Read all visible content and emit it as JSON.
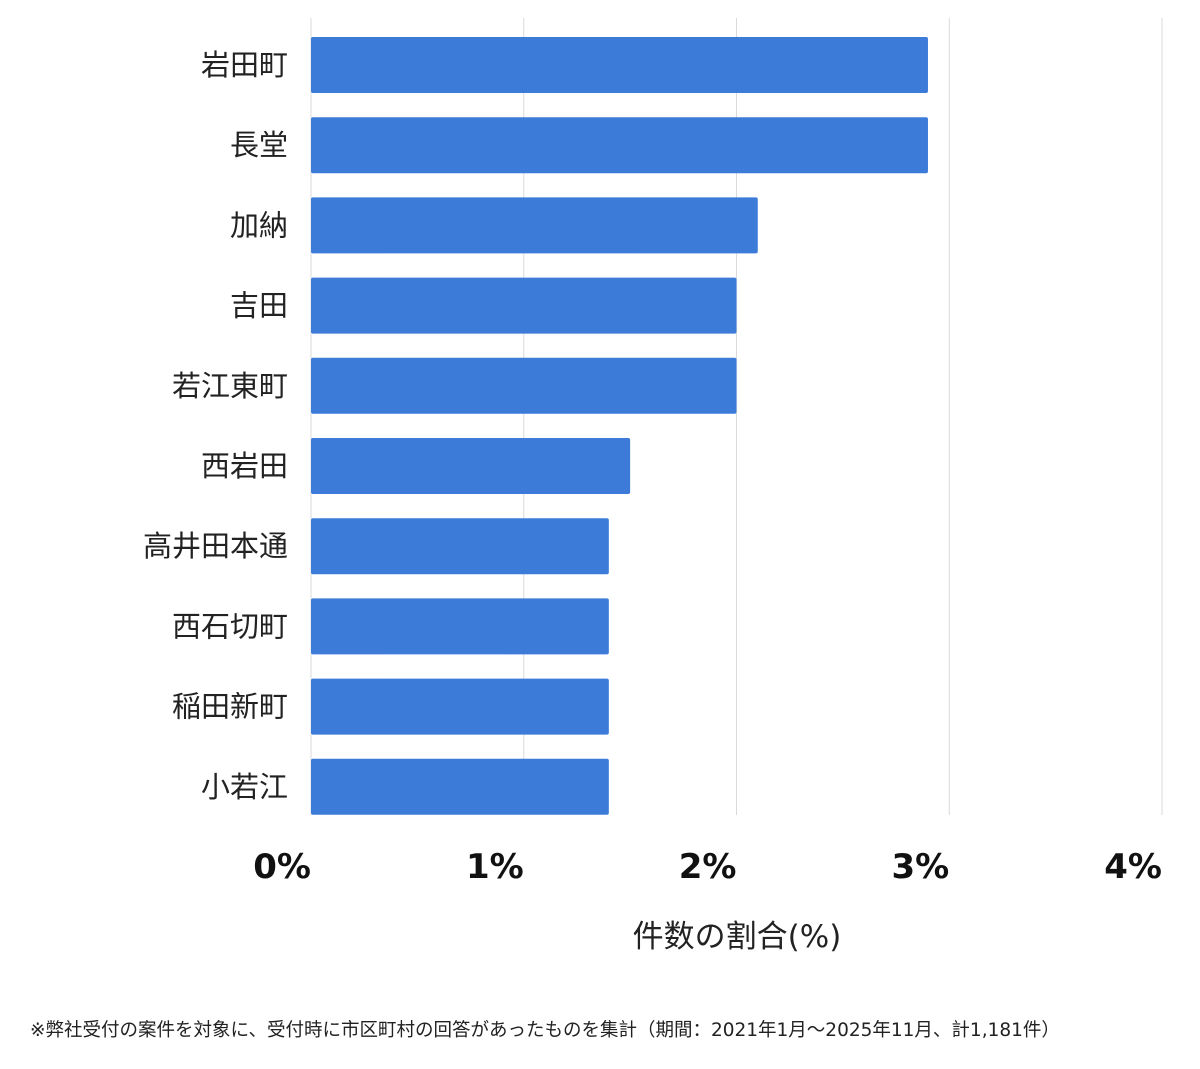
{
  "chart_data": {
    "type": "bar",
    "orientation": "horizontal",
    "categories": [
      "岩田町",
      "長堂",
      "加納",
      "吉田",
      "若江東町",
      "西岩田",
      "高井田本通",
      "西石切町",
      "稲田新町",
      "小若江"
    ],
    "values": [
      2.9,
      2.9,
      2.1,
      2.0,
      2.0,
      1.5,
      1.4,
      1.4,
      1.4,
      1.4
    ],
    "xlim": [
      0,
      4
    ],
    "ticks": [
      "0%",
      "1%",
      "2%",
      "3%",
      "4%"
    ],
    "xlabel": "件数の割合(%)",
    "ylabel": "",
    "grid": true,
    "bar_color": "#3c7bd8"
  },
  "footnote": "※弊社受付の案件を対象に、受付時に市区町村の回答があったものを集計（期間：2021年1月～2025年11月、計1,181件）"
}
